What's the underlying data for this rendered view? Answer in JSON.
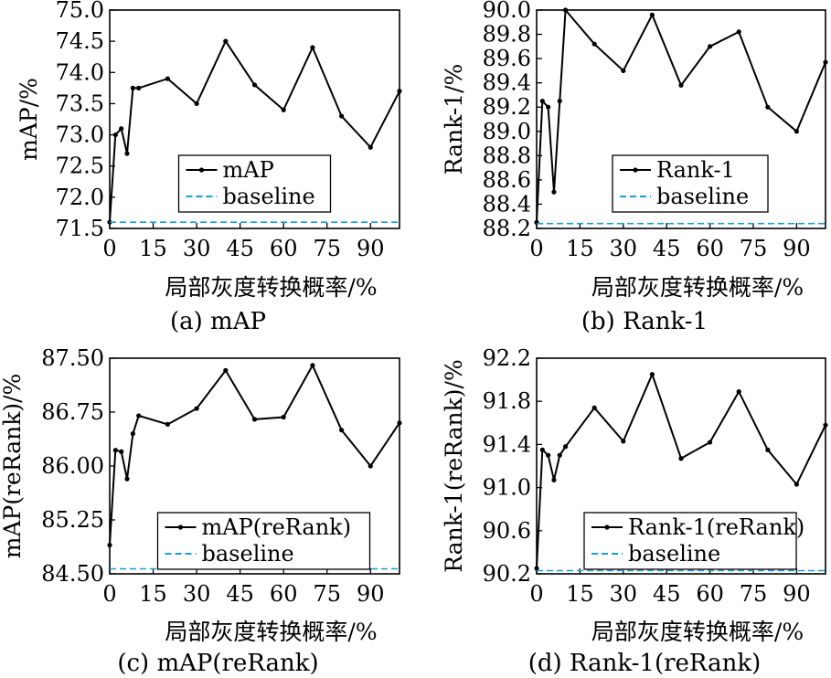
{
  "chart_data": [
    {
      "type": "line",
      "caption": "(a) mAP",
      "xlabel": "局部灰度转换概率/%",
      "ylabel": "mAP/%",
      "xlim": [
        0,
        100
      ],
      "ylim": [
        71.5,
        75.0
      ],
      "xticks": [
        "0",
        "15",
        "30",
        "45",
        "60",
        "75",
        "90"
      ],
      "xtick_values": [
        0,
        15,
        30,
        45,
        60,
        75,
        90
      ],
      "yticks": [
        "71.5",
        "72.0",
        "72.5",
        "73.0",
        "73.5",
        "74.0",
        "74.5",
        "75.0"
      ],
      "ytick_values": [
        71.5,
        72.0,
        72.5,
        73.0,
        73.5,
        74.0,
        74.5,
        75.0
      ],
      "legend_position": "lower-center",
      "series": [
        {
          "name": "mAP",
          "color": "#000000",
          "marker": true,
          "x": [
            0,
            2,
            4,
            6,
            8,
            10,
            20,
            30,
            40,
            50,
            60,
            70,
            80,
            90,
            100
          ],
          "y": [
            71.6,
            73.0,
            73.1,
            72.7,
            73.75,
            73.75,
            73.9,
            73.5,
            74.5,
            73.8,
            73.4,
            74.4,
            73.3,
            72.8,
            73.7
          ]
        },
        {
          "name": "baseline",
          "color": "#1aa0d0",
          "dashed": true,
          "x": [
            0,
            100
          ],
          "y": [
            71.6,
            71.6
          ]
        }
      ]
    },
    {
      "type": "line",
      "caption": "(b) Rank-1",
      "xlabel": "局部灰度转换概率/%",
      "ylabel": "Rank-1/%",
      "xlim": [
        0,
        100
      ],
      "ylim": [
        88.2,
        90.0
      ],
      "xticks": [
        "0",
        "15",
        "30",
        "45",
        "60",
        "75",
        "90"
      ],
      "xtick_values": [
        0,
        15,
        30,
        45,
        60,
        75,
        90
      ],
      "yticks": [
        "88.2",
        "88.4",
        "88.6",
        "88.8",
        "89.0",
        "89.2",
        "89.4",
        "89.6",
        "89.8",
        "90.0"
      ],
      "ytick_values": [
        88.2,
        88.4,
        88.6,
        88.8,
        89.0,
        89.2,
        89.4,
        89.6,
        89.8,
        90.0
      ],
      "legend_position": "lower-center",
      "series": [
        {
          "name": "Rank-1",
          "color": "#000000",
          "marker": true,
          "x": [
            0,
            2,
            4,
            6,
            8,
            10,
            20,
            30,
            40,
            50,
            60,
            70,
            80,
            90,
            100
          ],
          "y": [
            88.25,
            89.25,
            89.2,
            88.5,
            89.25,
            90.0,
            89.72,
            89.5,
            89.96,
            89.38,
            89.7,
            89.82,
            89.2,
            89.0,
            89.57
          ]
        },
        {
          "name": "baseline",
          "color": "#1aa0d0",
          "dashed": true,
          "x": [
            0,
            100
          ],
          "y": [
            88.24,
            88.24
          ]
        }
      ]
    },
    {
      "type": "line",
      "caption": "(c) mAP(reRank)",
      "xlabel": "局部灰度转换概率/%",
      "ylabel": "mAP(reRank)/%",
      "xlim": [
        0,
        100
      ],
      "ylim": [
        84.5,
        87.5
      ],
      "xticks": [
        "0",
        "15",
        "30",
        "45",
        "60",
        "75",
        "90"
      ],
      "xtick_values": [
        0,
        15,
        30,
        45,
        60,
        75,
        90
      ],
      "yticks": [
        "84.50",
        "85.25",
        "86.00",
        "86.75",
        "87.50"
      ],
      "ytick_values": [
        84.5,
        85.25,
        86.0,
        86.75,
        87.5
      ],
      "legend_position": "lower-center",
      "series": [
        {
          "name": "mAP(reRank)",
          "color": "#000000",
          "marker": true,
          "x": [
            0,
            2,
            4,
            6,
            8,
            10,
            20,
            30,
            40,
            50,
            60,
            70,
            80,
            90,
            100
          ],
          "y": [
            84.9,
            86.22,
            86.2,
            85.82,
            86.45,
            86.7,
            86.58,
            86.8,
            87.33,
            86.65,
            86.68,
            87.4,
            86.5,
            86.0,
            86.6
          ]
        },
        {
          "name": "baseline",
          "color": "#1aa0d0",
          "dashed": true,
          "x": [
            0,
            100
          ],
          "y": [
            84.57,
            84.57
          ]
        }
      ]
    },
    {
      "type": "line",
      "caption": "(d) Rank-1(reRank)",
      "xlabel": "局部灰度转换概率/%",
      "ylabel": "Rank-1(reRank)/%",
      "xlim": [
        0,
        100
      ],
      "ylim": [
        90.2,
        92.2
      ],
      "xticks": [
        "0",
        "15",
        "30",
        "45",
        "60",
        "75",
        "90"
      ],
      "xtick_values": [
        0,
        15,
        30,
        45,
        60,
        75,
        90
      ],
      "yticks": [
        "90.2",
        "90.6",
        "91.0",
        "91.4",
        "91.8",
        "92.2"
      ],
      "ytick_values": [
        90.2,
        90.6,
        91.0,
        91.4,
        91.8,
        92.2
      ],
      "legend_position": "lower-center",
      "series": [
        {
          "name": "Rank-1(reRank)",
          "color": "#000000",
          "marker": true,
          "x": [
            0,
            2,
            4,
            6,
            8,
            10,
            20,
            30,
            40,
            50,
            60,
            70,
            80,
            90,
            100
          ],
          "y": [
            90.25,
            91.35,
            91.3,
            91.07,
            91.3,
            91.38,
            91.74,
            91.43,
            92.05,
            91.27,
            91.42,
            91.89,
            91.35,
            91.03,
            91.58
          ]
        },
        {
          "name": "baseline",
          "color": "#1aa0d0",
          "dashed": true,
          "x": [
            0,
            100
          ],
          "y": [
            90.23,
            90.23
          ]
        }
      ]
    }
  ]
}
